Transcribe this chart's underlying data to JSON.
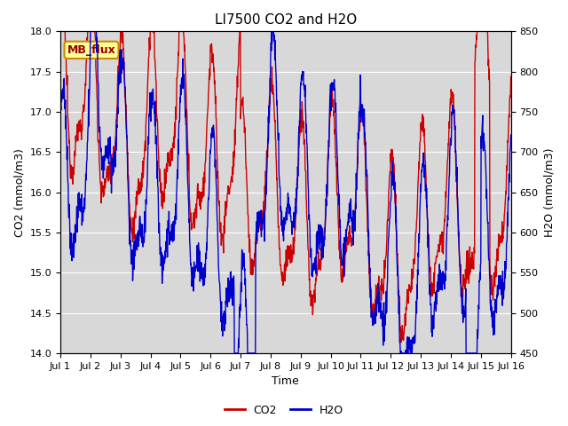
{
  "title": "LI7500 CO2 and H2O",
  "xlabel": "Time",
  "ylabel_left": "CO2 (mmol/m3)",
  "ylabel_right": "H2O (mmol/m3)",
  "co2_ylim": [
    14.0,
    18.0
  ],
  "h2o_ylim": [
    450,
    850
  ],
  "co2_yticks": [
    14.0,
    14.5,
    15.0,
    15.5,
    16.0,
    16.5,
    17.0,
    17.5,
    18.0
  ],
  "h2o_yticks": [
    450,
    500,
    550,
    600,
    650,
    700,
    750,
    800,
    850
  ],
  "xtick_labels": [
    "Jul 1",
    "Jul 2",
    "Jul 3",
    "Jul 4",
    "Jul 5",
    "Jul 6",
    "Jul 7",
    "Jul 8",
    "Jul 9",
    "Jul 10",
    "Jul 11",
    "Jul 12",
    "Jul 13",
    "Jul 14",
    "Jul 15",
    "Jul 16"
  ],
  "co2_color": "#cc0000",
  "h2o_color": "#0000cc",
  "legend_label_co2": "CO2",
  "legend_label_h2o": "H2O",
  "annotation_text": "MB_flux",
  "annotation_bg": "#ffff99",
  "annotation_border": "#cc8800",
  "plot_bg_color": "#d8d8d8",
  "fig_bg_color": "#ffffff",
  "grid_color": "#ffffff",
  "title_fontsize": 11,
  "label_fontsize": 9,
  "tick_fontsize": 8,
  "legend_fontsize": 9,
  "line_width": 1.0,
  "n_days": 15,
  "n_per_day": 96
}
